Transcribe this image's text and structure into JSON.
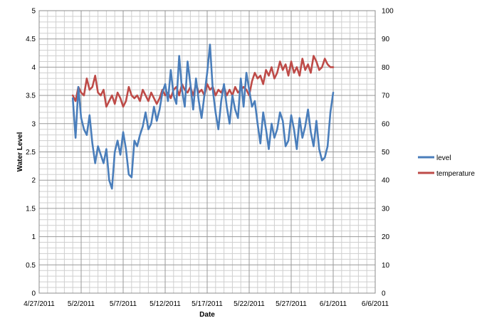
{
  "chart_data": {
    "type": "line",
    "title": "",
    "xlabel": "Date",
    "ylabel": "Water Level",
    "y2label": "",
    "x_ticks": [
      "4/27/2011",
      "5/2/2011",
      "5/7/2011",
      "5/12/2011",
      "5/17/2011",
      "5/22/2011",
      "5/27/2011",
      "6/1/2011",
      "6/6/2011"
    ],
    "x_range": [
      "4/27/2011",
      "6/6/2011"
    ],
    "y_ticks": [
      "0",
      "0.5",
      "1",
      "1.5",
      "2",
      "2.5",
      "3",
      "3.5",
      "4",
      "4.5",
      "5"
    ],
    "ylim": [
      0,
      5
    ],
    "y2_ticks": [
      "0",
      "10",
      "20",
      "30",
      "40",
      "50",
      "60",
      "70",
      "80",
      "90",
      "100"
    ],
    "y2lim": [
      0,
      100
    ],
    "grid": true,
    "legend_position": "right",
    "colors": {
      "level": "#4a7ebb",
      "temperature": "#be4b48",
      "grid": "#b8b8b8"
    },
    "series": [
      {
        "name": "level",
        "axis": "left",
        "color": "#4a7ebb",
        "x": [
          "5/1/2011",
          "5/1/2011",
          "5/1/2011",
          "5/2/2011",
          "5/2/2011",
          "5/2/2011",
          "5/3/2011",
          "5/3/2011",
          "5/3/2011",
          "5/4/2011",
          "5/4/2011",
          "5/4/2011",
          "5/5/2011",
          "5/5/2011",
          "5/5/2011",
          "5/6/2011",
          "5/6/2011",
          "5/6/2011",
          "5/7/2011",
          "5/7/2011",
          "5/7/2011",
          "5/8/2011",
          "5/8/2011",
          "5/8/2011",
          "5/9/2011",
          "5/9/2011",
          "5/9/2011",
          "5/10/2011",
          "5/10/2011",
          "5/10/2011",
          "5/11/2011",
          "5/11/2011",
          "5/11/2011",
          "5/12/2011",
          "5/12/2011",
          "5/12/2011",
          "5/13/2011",
          "5/13/2011",
          "5/13/2011",
          "5/14/2011",
          "5/14/2011",
          "5/14/2011",
          "5/15/2011",
          "5/15/2011",
          "5/15/2011",
          "5/16/2011",
          "5/16/2011",
          "5/16/2011",
          "5/17/2011",
          "5/17/2011",
          "5/17/2011",
          "5/18/2011",
          "5/18/2011",
          "5/18/2011",
          "5/19/2011",
          "5/19/2011",
          "5/19/2011",
          "5/20/2011",
          "5/20/2011",
          "5/20/2011",
          "5/21/2011",
          "5/21/2011",
          "5/21/2011",
          "5/22/2011",
          "5/22/2011",
          "5/22/2011",
          "5/23/2011",
          "5/23/2011",
          "5/23/2011",
          "5/24/2011",
          "5/24/2011",
          "5/24/2011",
          "5/25/2011",
          "5/25/2011",
          "5/25/2011",
          "5/26/2011",
          "5/26/2011",
          "5/26/2011",
          "5/27/2011",
          "5/27/2011",
          "5/27/2011",
          "5/28/2011",
          "5/28/2011",
          "5/28/2011",
          "5/29/2011",
          "5/29/2011",
          "5/29/2011",
          "5/30/2011",
          "5/30/2011",
          "5/30/2011",
          "5/31/2011",
          "5/31/2011",
          "5/31/2011",
          "6/1/2011"
        ],
        "values": [
          3.45,
          2.75,
          3.65,
          3.1,
          2.9,
          2.8,
          3.15,
          2.65,
          2.3,
          2.6,
          2.45,
          2.3,
          2.55,
          2.0,
          1.85,
          2.5,
          2.7,
          2.45,
          2.85,
          2.55,
          2.1,
          2.05,
          2.7,
          2.6,
          2.8,
          2.95,
          3.2,
          2.9,
          3.0,
          3.3,
          3.05,
          3.25,
          3.55,
          3.7,
          3.4,
          3.95,
          3.5,
          3.35,
          4.2,
          3.6,
          3.3,
          4.1,
          3.7,
          3.25,
          3.8,
          3.4,
          3.1,
          3.5,
          3.9,
          4.4,
          3.6,
          3.2,
          2.9,
          3.4,
          3.7,
          3.3,
          3.0,
          3.5,
          3.25,
          3.1,
          3.8,
          3.3,
          3.9,
          3.6,
          3.3,
          3.4,
          3.0,
          2.65,
          3.2,
          2.9,
          2.55,
          3.0,
          2.75,
          2.9,
          3.2,
          3.05,
          2.6,
          2.7,
          3.15,
          2.9,
          2.55,
          3.1,
          2.75,
          2.95,
          3.25,
          2.85,
          2.6,
          3.05,
          2.55,
          2.35,
          2.4,
          2.6,
          3.2,
          3.55
        ]
      },
      {
        "name": "temperature",
        "axis": "right",
        "color": "#be4b48",
        "x": [
          "5/1/2011",
          "5/1/2011",
          "5/1/2011",
          "5/2/2011",
          "5/2/2011",
          "5/2/2011",
          "5/3/2011",
          "5/3/2011",
          "5/3/2011",
          "5/4/2011",
          "5/4/2011",
          "5/4/2011",
          "5/5/2011",
          "5/5/2011",
          "5/5/2011",
          "5/6/2011",
          "5/6/2011",
          "5/6/2011",
          "5/7/2011",
          "5/7/2011",
          "5/7/2011",
          "5/8/2011",
          "5/8/2011",
          "5/8/2011",
          "5/9/2011",
          "5/9/2011",
          "5/9/2011",
          "5/10/2011",
          "5/10/2011",
          "5/10/2011",
          "5/11/2011",
          "5/11/2011",
          "5/11/2011",
          "5/12/2011",
          "5/12/2011",
          "5/12/2011",
          "5/13/2011",
          "5/13/2011",
          "5/13/2011",
          "5/14/2011",
          "5/14/2011",
          "5/14/2011",
          "5/15/2011",
          "5/15/2011",
          "5/15/2011",
          "5/16/2011",
          "5/16/2011",
          "5/16/2011",
          "5/17/2011",
          "5/17/2011",
          "5/17/2011",
          "5/18/2011",
          "5/18/2011",
          "5/18/2011",
          "5/19/2011",
          "5/19/2011",
          "5/19/2011",
          "5/20/2011",
          "5/20/2011",
          "5/20/2011",
          "5/21/2011",
          "5/21/2011",
          "5/21/2011",
          "5/22/2011",
          "5/22/2011",
          "5/22/2011",
          "5/23/2011",
          "5/23/2011",
          "5/23/2011",
          "5/24/2011",
          "5/24/2011",
          "5/24/2011",
          "5/25/2011",
          "5/25/2011",
          "5/25/2011",
          "5/26/2011",
          "5/26/2011",
          "5/26/2011",
          "5/27/2011",
          "5/27/2011",
          "5/27/2011",
          "5/28/2011",
          "5/28/2011",
          "5/28/2011",
          "5/29/2011",
          "5/29/2011",
          "5/29/2011",
          "5/30/2011",
          "5/30/2011",
          "5/30/2011",
          "5/31/2011",
          "5/31/2011",
          "5/31/2011",
          "6/1/2011"
        ],
        "values": [
          70,
          68,
          73,
          71,
          70,
          76,
          72,
          73,
          77,
          71,
          70,
          72,
          66,
          68,
          70,
          67,
          71,
          69,
          66,
          68,
          73,
          70,
          69,
          70,
          68,
          72,
          70,
          68,
          71,
          69,
          67,
          69,
          72,
          70,
          71,
          69,
          72,
          73,
          70,
          74,
          72,
          71,
          73,
          70,
          74,
          71,
          72,
          70,
          74,
          72,
          73,
          70,
          72,
          71,
          73,
          70,
          72,
          70,
          73,
          71,
          72,
          73,
          72,
          70,
          75,
          78,
          76,
          77,
          74,
          79,
          77,
          80,
          76,
          78,
          82,
          79,
          81,
          77,
          82,
          78,
          80,
          77,
          83,
          79,
          81,
          78,
          84,
          82,
          79,
          80,
          83,
          81,
          80,
          80
        ]
      }
    ]
  }
}
